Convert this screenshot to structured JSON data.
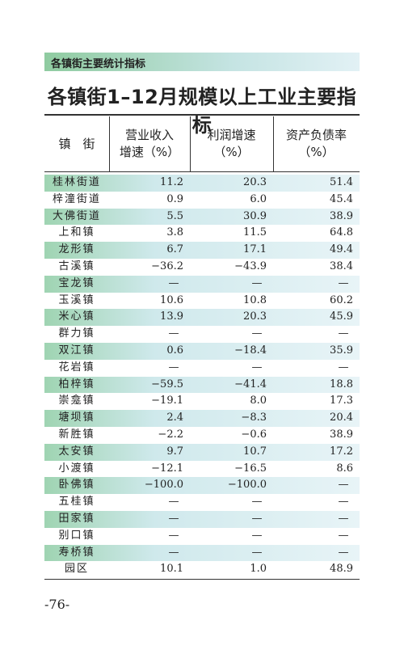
{
  "header": {
    "label": "各镇街主要统计指标",
    "title": "各镇街1–12月规模以上工业主要指标"
  },
  "table": {
    "columns": [
      [
        "镇　街"
      ],
      [
        "营业收入",
        "增速（%）"
      ],
      [
        "利润增速",
        "（%）"
      ],
      [
        "资产负债率",
        "（%）"
      ]
    ],
    "rows": [
      [
        "桂林街道",
        "11.2",
        "20.3",
        "51.4"
      ],
      [
        "梓潼街道",
        "0.9",
        "6.0",
        "45.4"
      ],
      [
        "大佛街道",
        "5.5",
        "30.9",
        "38.9"
      ],
      [
        "上和镇",
        "3.8",
        "11.5",
        "64.8"
      ],
      [
        "龙形镇",
        "6.7",
        "17.1",
        "49.4"
      ],
      [
        "古溪镇",
        "−36.2",
        "−43.9",
        "38.4"
      ],
      [
        "宝龙镇",
        "—",
        "—",
        "—"
      ],
      [
        "玉溪镇",
        "10.6",
        "10.8",
        "60.2"
      ],
      [
        "米心镇",
        "13.9",
        "20.3",
        "45.9"
      ],
      [
        "群力镇",
        "—",
        "—",
        "—"
      ],
      [
        "双江镇",
        "0.6",
        "−18.4",
        "35.9"
      ],
      [
        "花岩镇",
        "—",
        "—",
        "—"
      ],
      [
        "柏梓镇",
        "−59.5",
        "−41.4",
        "18.8"
      ],
      [
        "崇龛镇",
        "−19.1",
        "8.0",
        "17.3"
      ],
      [
        "塘坝镇",
        "2.4",
        "−8.3",
        "20.4"
      ],
      [
        "新胜镇",
        "−2.2",
        "−0.6",
        "38.9"
      ],
      [
        "太安镇",
        "9.7",
        "10.7",
        "17.2"
      ],
      [
        "小渡镇",
        "−12.1",
        "−16.5",
        "8.6"
      ],
      [
        "卧佛镇",
        "−100.0",
        "−100.0",
        "—"
      ],
      [
        "五桂镇",
        "—",
        "—",
        "—"
      ],
      [
        "田家镇",
        "—",
        "—",
        "—"
      ],
      [
        "别口镇",
        "—",
        "—",
        "—"
      ],
      [
        "寿桥镇",
        "—",
        "—",
        "—"
      ],
      [
        "园区",
        "10.1",
        "1.0",
        "48.9"
      ]
    ]
  },
  "footer": {
    "page_number": "-76-"
  }
}
